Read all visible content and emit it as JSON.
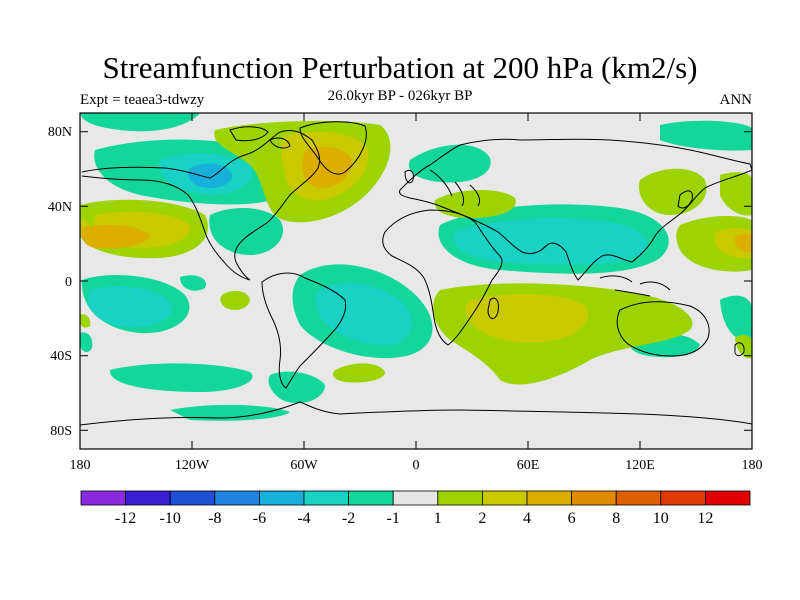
{
  "title": "Streamfunction Perturbation at 200 hPa (km2/s)",
  "expt_label": "Expt = teaea3-tdwzy",
  "period_label": "26.0kyr BP - 026kyr BP",
  "season_label": "ANN",
  "map": {
    "lon_ticks": [
      "180",
      "120W",
      "60W",
      "0",
      "60E",
      "120E",
      "180"
    ],
    "lat_ticks": [
      "80N",
      "40N",
      "0",
      "40S",
      "80S"
    ],
    "land_shading": "none",
    "ocean_color": "#e8e8e8"
  },
  "colorbar": {
    "colors": [
      "#8a2be2",
      "#3a1fd4",
      "#1f4fd4",
      "#1e86e0",
      "#17b0da",
      "#18d2c6",
      "#13d79a",
      "#e6e6e6",
      "#9cd300",
      "#c9c900",
      "#dbae00",
      "#e08a00",
      "#e06000",
      "#e03a00",
      "#e00000"
    ],
    "labels": [
      "-12",
      "-10",
      "-8",
      "-6",
      "-4",
      "-2",
      "-1",
      "1",
      "2",
      "4",
      "6",
      "8",
      "10",
      "12"
    ]
  }
}
